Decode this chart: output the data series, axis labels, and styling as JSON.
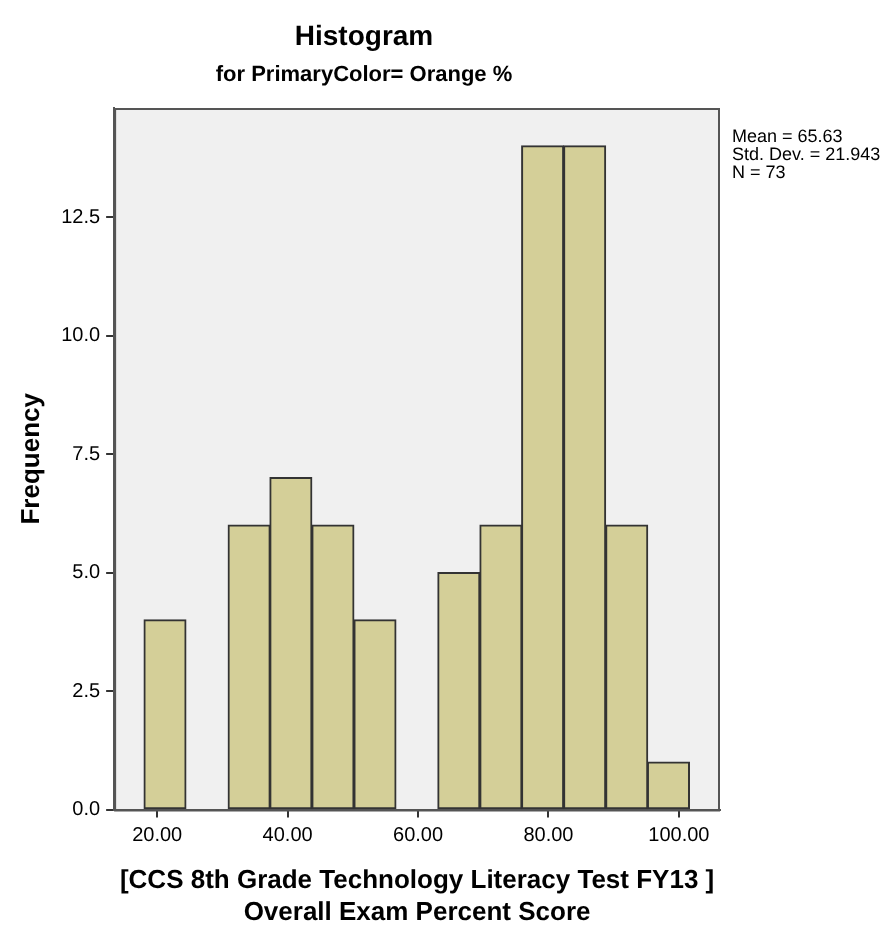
{
  "chart_data": {
    "type": "histogram",
    "title": "Histogram",
    "subtitle": "for PrimaryColor= Orange %",
    "xlabel": "[CCS 8th Grade Technology Literacy Test FY13 ]\nOverall Exam Percent Score",
    "ylabel": "Frequency",
    "bins": [
      18,
      24.4,
      30.9,
      37.3,
      43.7,
      50.2,
      56.6,
      63.0,
      69.5,
      75.9,
      82.3,
      88.8,
      95.2,
      101.6
    ],
    "values": [
      4,
      0,
      6,
      7,
      6,
      4,
      0,
      5,
      6,
      14,
      14,
      6,
      1
    ],
    "color": "#d4cf98",
    "xlim": [
      13.4,
      106.3
    ],
    "xticks": [
      {
        "value": 20,
        "label": "20.00"
      },
      {
        "value": 40,
        "label": "40.00"
      },
      {
        "value": 60,
        "label": "60.00"
      },
      {
        "value": 80,
        "label": "80.00"
      },
      {
        "value": 100,
        "label": "100.00"
      }
    ],
    "ylim": [
      0,
      14.8
    ],
    "yticks": [
      {
        "value": 0,
        "label": "0.0"
      },
      {
        "value": 2.5,
        "label": "2.5"
      },
      {
        "value": 5,
        "label": "5.0"
      },
      {
        "value": 7.5,
        "label": "7.5"
      },
      {
        "value": 10,
        "label": "10.0"
      },
      {
        "value": 12.5,
        "label": "12.5"
      }
    ],
    "annotations": [
      "Mean = 65.63",
      "Std. Dev. = 21.943",
      "N = 73"
    ],
    "grid": false,
    "legend": false
  }
}
